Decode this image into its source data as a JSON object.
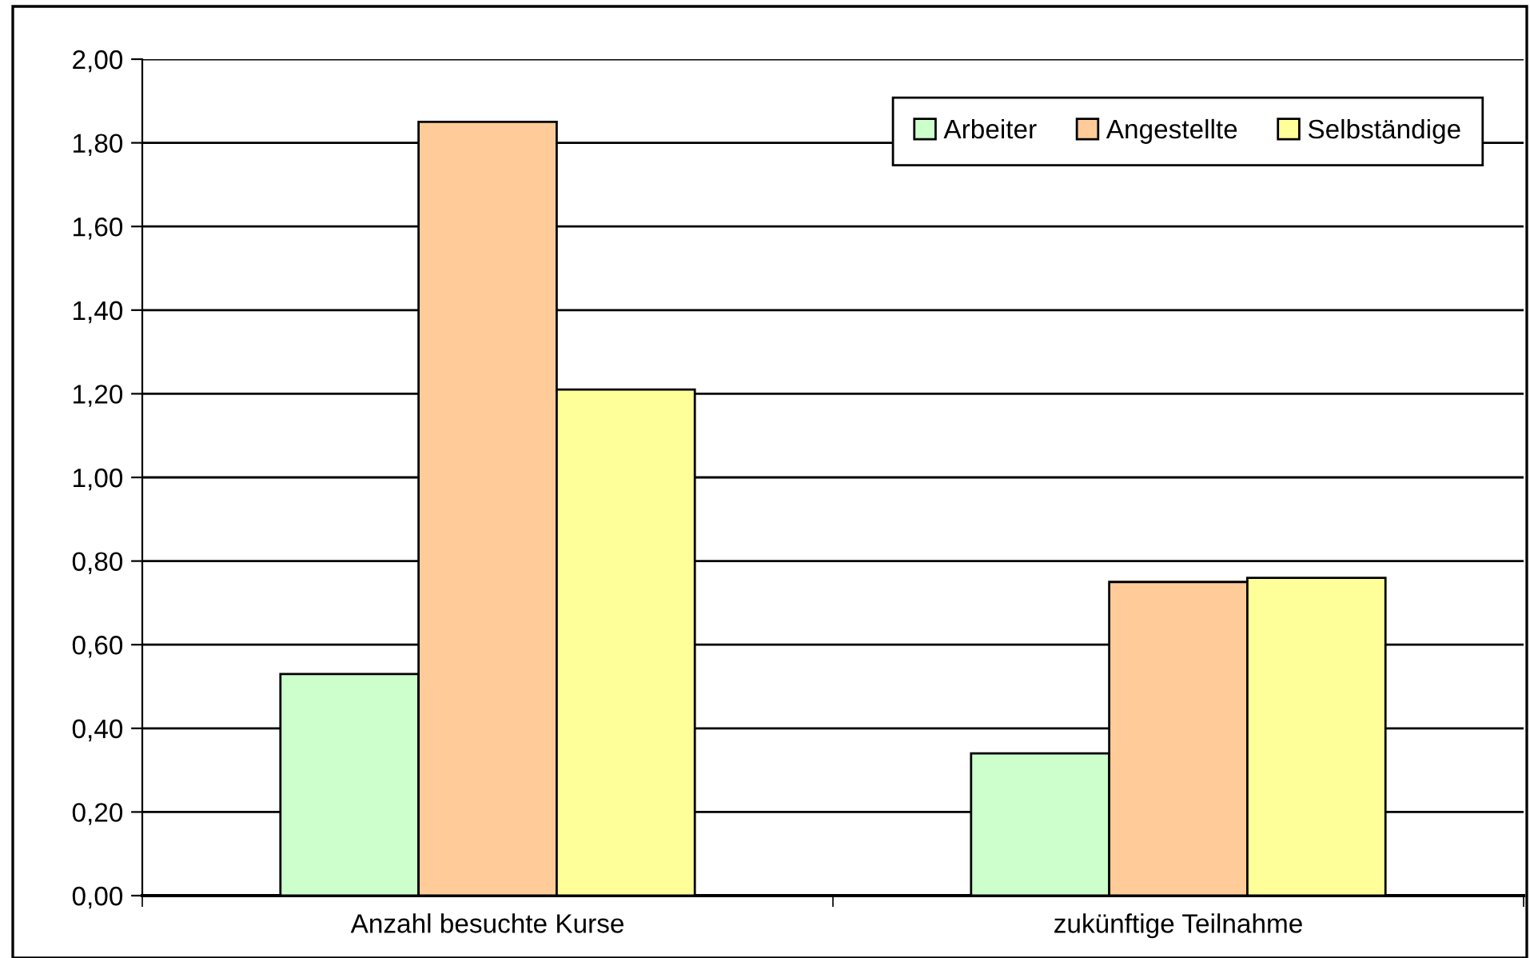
{
  "chart_data": {
    "type": "bar",
    "categories": [
      "Anzahl besuchte Kurse",
      "zukünftige Teilnahme"
    ],
    "series": [
      {
        "name": "Arbeiter",
        "color": "#ccffcc",
        "values": [
          0.53,
          0.34
        ]
      },
      {
        "name": "Angestellte",
        "color": "#ffcc99",
        "values": [
          1.85,
          0.75
        ]
      },
      {
        "name": "Selbständige",
        "color": "#ffff99",
        "values": [
          1.21,
          0.76
        ]
      }
    ],
    "ylim": [
      0,
      2
    ],
    "yticks": [
      {
        "value": 0,
        "label": "0,00"
      },
      {
        "value": 0.2,
        "label": "0,20"
      },
      {
        "value": 0.4,
        "label": "0,40"
      },
      {
        "value": 0.6,
        "label": "0,60"
      },
      {
        "value": 0.8,
        "label": "0,80"
      },
      {
        "value": 1,
        "label": "1,00"
      },
      {
        "value": 1.2,
        "label": "1,20"
      },
      {
        "value": 1.4,
        "label": "1,40"
      },
      {
        "value": 1.6,
        "label": "1,60"
      },
      {
        "value": 1.8,
        "label": "1,80"
      },
      {
        "value": 2,
        "label": "2,00"
      }
    ],
    "grid": "y",
    "legend": "top right"
  }
}
